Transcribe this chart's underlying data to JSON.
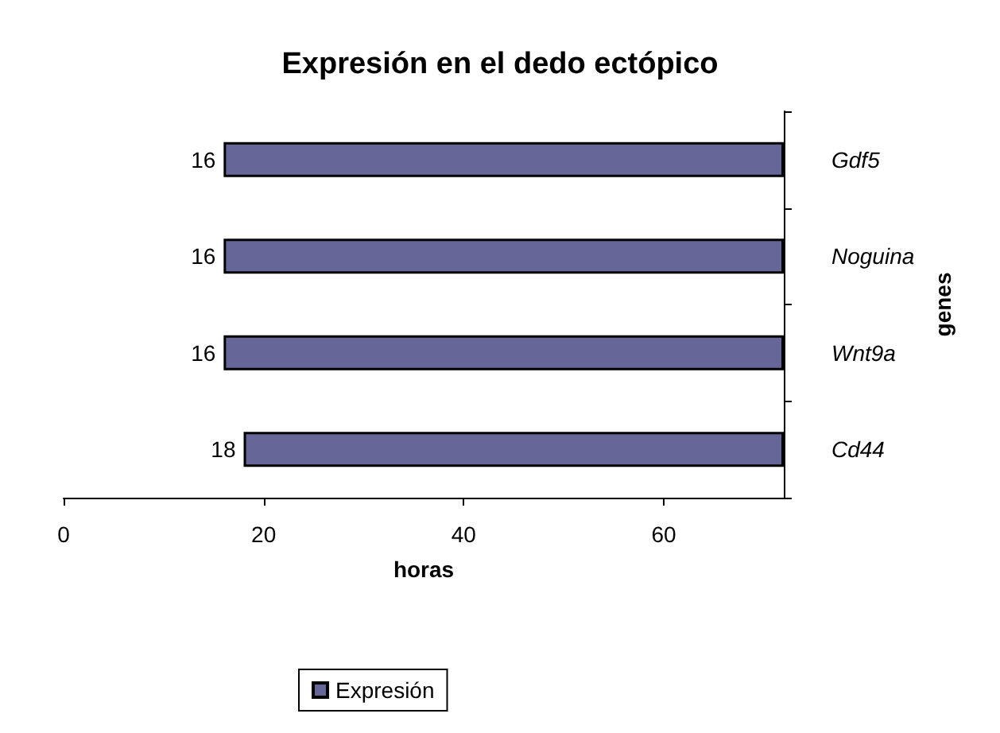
{
  "chart_data": {
    "type": "bar",
    "orientation": "horizontal",
    "title": "Expresión en el dedo ectópico",
    "xlabel": "horas",
    "ylabel": "genes",
    "categories": [
      "Gdf5",
      "Noguina",
      "Wnt9a",
      "Cd44"
    ],
    "series": [
      {
        "name": "Expresión",
        "color": "#666699",
        "values": [
          56,
          56,
          56,
          54
        ],
        "base": [
          16,
          16,
          16,
          18
        ]
      }
    ],
    "annotations": [
      "16",
      "16",
      "16",
      "18"
    ],
    "xlim": [
      0,
      72
    ],
    "xticks": [
      0,
      20,
      40,
      60
    ],
    "grid": false,
    "legend": "bottom"
  }
}
